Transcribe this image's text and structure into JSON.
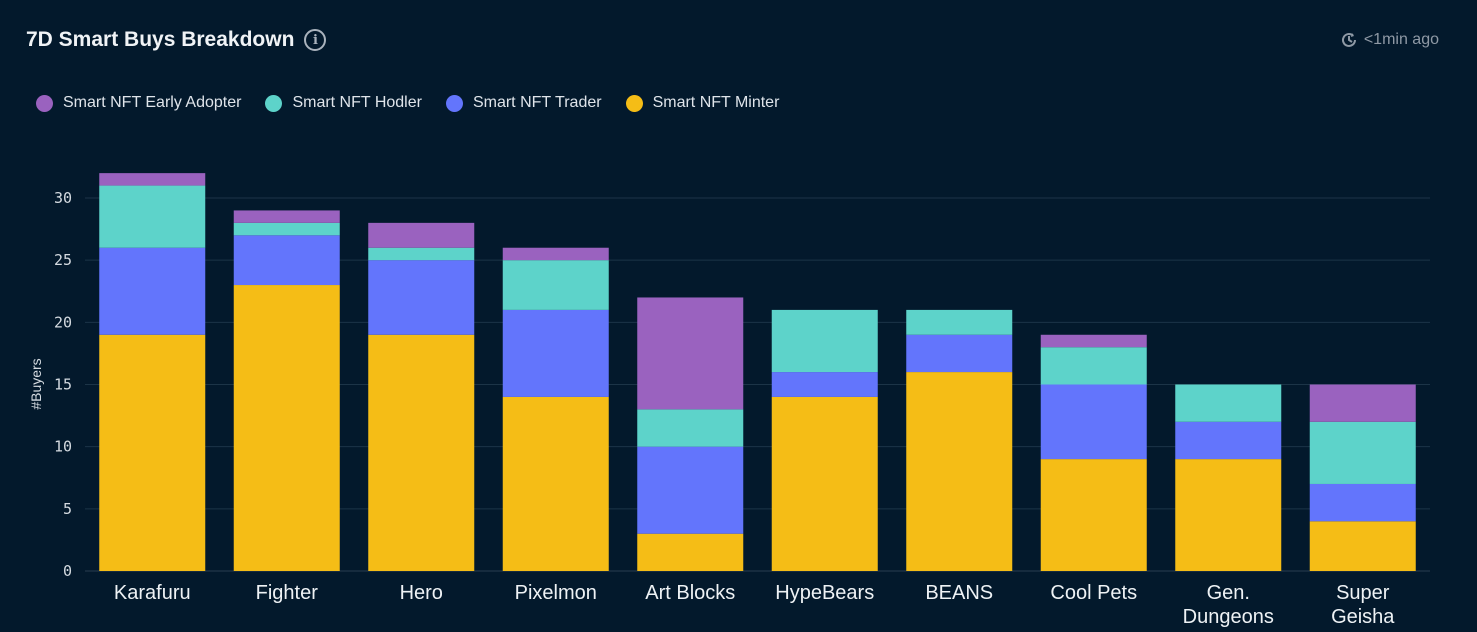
{
  "header": {
    "title": "7D Smart Buys Breakdown",
    "info_icon": "info-icon",
    "updated": "<1min ago",
    "updated_icon": "clock-refresh-icon"
  },
  "chart_data": {
    "type": "bar",
    "stacked": true,
    "title": "7D Smart Buys Breakdown",
    "ylabel": "#Buyers",
    "xlabel": "",
    "ylim": [
      0,
      32
    ],
    "yticks": [
      0,
      5,
      10,
      15,
      20,
      25,
      30
    ],
    "grid": true,
    "legend_position": "top-left",
    "categories": [
      "Karafuru",
      "Fighter",
      "Hero",
      "Pixelmon",
      "Art Blocks",
      "HypeBears",
      "BEANS",
      "Cool Pets",
      "Gen.\nDungeons",
      "Super\nGeisha"
    ],
    "legend_order": [
      "Smart NFT Early Adopter",
      "Smart NFT Hodler",
      "Smart NFT Trader",
      "Smart NFT Minter"
    ],
    "series": [
      {
        "name": "Smart NFT Minter",
        "color": "#f5bd16",
        "values": [
          19,
          23,
          19,
          14,
          3,
          14,
          16,
          9,
          9,
          4
        ]
      },
      {
        "name": "Smart NFT Trader",
        "color": "#6375fc",
        "values": [
          7,
          4,
          6,
          7,
          7,
          2,
          3,
          6,
          3,
          3
        ]
      },
      {
        "name": "Smart NFT Hodler",
        "color": "#5dd3ca",
        "values": [
          5,
          1,
          1,
          4,
          3,
          5,
          2,
          3,
          3,
          5
        ]
      },
      {
        "name": "Smart NFT Early Adopter",
        "color": "#9a62bf",
        "values": [
          1,
          1,
          2,
          1,
          9,
          0,
          0,
          1,
          0,
          3
        ]
      }
    ]
  }
}
